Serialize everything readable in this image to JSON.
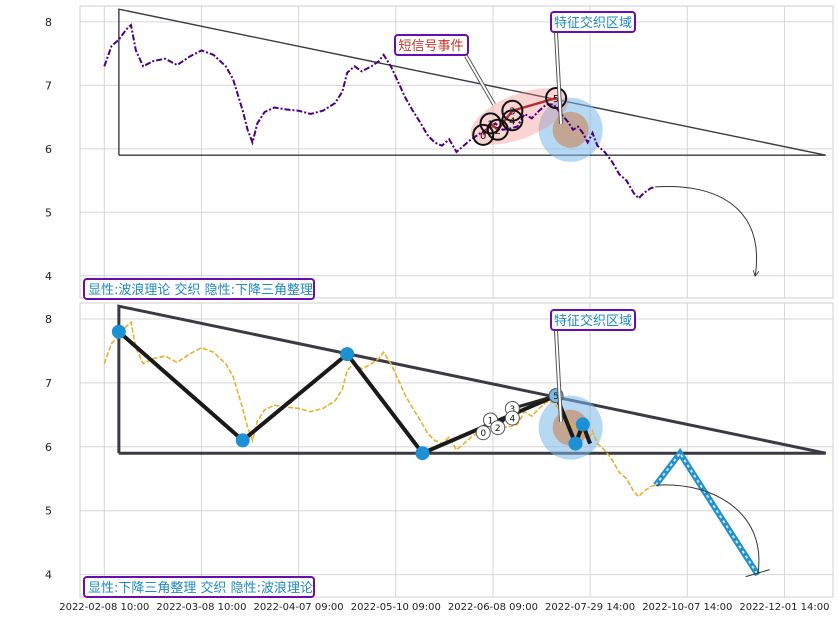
{
  "chart_data": [
    {
      "type": "line",
      "panel": "top",
      "ylim": [
        3.65,
        8.25
      ],
      "yticks": [
        4,
        5,
        6,
        7,
        8
      ],
      "grid": true,
      "colors": {
        "price": "#4b0082",
        "triangle": "#3a3a44",
        "event_fill": "#f08080",
        "zone_outer": "#7ab8e8",
        "zone_inner": "#d2691e",
        "label_border": "#6a0dad",
        "label_text_blue": "#1f8ac0",
        "label_text_red": "#c0392b"
      },
      "price_series": [
        [
          0,
          7.3
        ],
        [
          3,
          7.62
        ],
        [
          6,
          7.72
        ],
        [
          9,
          7.88
        ],
        [
          11,
          7.95
        ],
        [
          13,
          7.55
        ],
        [
          16,
          7.3
        ],
        [
          20,
          7.38
        ],
        [
          25,
          7.42
        ],
        [
          30,
          7.32
        ],
        [
          35,
          7.45
        ],
        [
          40,
          7.55
        ],
        [
          45,
          7.48
        ],
        [
          50,
          7.3
        ],
        [
          53,
          7.1
        ],
        [
          55,
          6.85
        ],
        [
          57,
          6.6
        ],
        [
          59,
          6.3
        ],
        [
          61,
          6.1
        ],
        [
          63,
          6.4
        ],
        [
          66,
          6.58
        ],
        [
          70,
          6.65
        ],
        [
          75,
          6.62
        ],
        [
          80,
          6.6
        ],
        [
          85,
          6.55
        ],
        [
          90,
          6.6
        ],
        [
          95,
          6.72
        ],
        [
          98,
          6.9
        ],
        [
          100,
          7.2
        ],
        [
          103,
          7.3
        ],
        [
          106,
          7.22
        ],
        [
          110,
          7.3
        ],
        [
          113,
          7.38
        ],
        [
          115,
          7.48
        ],
        [
          118,
          7.3
        ],
        [
          121,
          7.05
        ],
        [
          124,
          6.8
        ],
        [
          127,
          6.6
        ],
        [
          130,
          6.42
        ],
        [
          133,
          6.22
        ],
        [
          136,
          6.1
        ],
        [
          139,
          6.05
        ],
        [
          142,
          6.15
        ],
        [
          145,
          5.95
        ],
        [
          148,
          6.05
        ],
        [
          151,
          6.15
        ],
        [
          155,
          6.25
        ],
        [
          158,
          6.32
        ],
        [
          161,
          6.4
        ],
        [
          164,
          6.3
        ],
        [
          167,
          6.32
        ],
        [
          170,
          6.35
        ],
        [
          173,
          6.55
        ],
        [
          176,
          6.48
        ],
        [
          179,
          6.6
        ],
        [
          182,
          6.7
        ],
        [
          185,
          6.7
        ],
        [
          188,
          6.55
        ],
        [
          191,
          6.42
        ],
        [
          193,
          6.3
        ],
        [
          195,
          6.35
        ],
        [
          197,
          6.25
        ],
        [
          199,
          6.1
        ],
        [
          201,
          6.25
        ],
        [
          203,
          6.05
        ],
        [
          206,
          5.95
        ],
        [
          209,
          5.8
        ],
        [
          212,
          5.6
        ],
        [
          215,
          5.5
        ],
        [
          218,
          5.3
        ],
        [
          220,
          5.22
        ],
        [
          222,
          5.3
        ],
        [
          225,
          5.38
        ],
        [
          227,
          5.4
        ]
      ],
      "triangle": {
        "apex": [
          6,
          8.2
        ],
        "base_left": [
          6,
          5.9
        ],
        "base_right": [
          297,
          5.9
        ]
      },
      "triangle_break_x": 140,
      "wave_points": [
        {
          "label": "0",
          "x": 156,
          "y": 6.22
        },
        {
          "label": "1",
          "x": 159,
          "y": 6.4
        },
        {
          "label": "2",
          "x": 162,
          "y": 6.3
        },
        {
          "label": "3",
          "x": 168,
          "y": 6.6
        },
        {
          "label": "4",
          "x": 168,
          "y": 6.45
        },
        {
          "label": "5",
          "x": 186,
          "y": 6.8
        }
      ],
      "event_zone": {
        "x": 192,
        "y": 6.3
      },
      "projection": {
        "from": [
          227,
          5.4
        ],
        "to": [
          268,
          4.0
        ]
      },
      "label": "显性:波浪理论 交织 隐性:下降三角整理",
      "annotations": {
        "short_signal": "短信号事件",
        "zone": "特征交织区域"
      }
    },
    {
      "type": "line",
      "panel": "bottom",
      "ylim": [
        3.65,
        8.25
      ],
      "yticks": [
        4,
        5,
        6,
        7,
        8
      ],
      "grid": true,
      "colors": {
        "price": "#e8b030",
        "wave": "#1a1a1a",
        "wave_marker": "#1e90d4",
        "triangle": "#3a3a44",
        "projection_fill": "#a8c8e0",
        "projection_edge": "#1e90d4",
        "zone_outer": "#7ab8e8",
        "zone_inner": "#d2691e",
        "label_border": "#6a0dad",
        "label_text_blue": "#1f8ac0"
      },
      "price_series": [
        [
          0,
          7.3
        ],
        [
          3,
          7.62
        ],
        [
          6,
          7.72
        ],
        [
          9,
          7.88
        ],
        [
          11,
          7.95
        ],
        [
          13,
          7.55
        ],
        [
          16,
          7.3
        ],
        [
          20,
          7.38
        ],
        [
          25,
          7.42
        ],
        [
          30,
          7.32
        ],
        [
          35,
          7.45
        ],
        [
          40,
          7.55
        ],
        [
          45,
          7.48
        ],
        [
          50,
          7.3
        ],
        [
          53,
          7.1
        ],
        [
          55,
          6.85
        ],
        [
          57,
          6.6
        ],
        [
          59,
          6.3
        ],
        [
          61,
          6.1
        ],
        [
          63,
          6.4
        ],
        [
          66,
          6.58
        ],
        [
          70,
          6.65
        ],
        [
          75,
          6.62
        ],
        [
          80,
          6.6
        ],
        [
          85,
          6.55
        ],
        [
          90,
          6.6
        ],
        [
          95,
          6.72
        ],
        [
          98,
          6.9
        ],
        [
          100,
          7.2
        ],
        [
          103,
          7.3
        ],
        [
          106,
          7.22
        ],
        [
          110,
          7.3
        ],
        [
          113,
          7.38
        ],
        [
          115,
          7.48
        ],
        [
          118,
          7.3
        ],
        [
          121,
          7.05
        ],
        [
          124,
          6.8
        ],
        [
          127,
          6.6
        ],
        [
          130,
          6.42
        ],
        [
          133,
          6.22
        ],
        [
          136,
          6.1
        ],
        [
          139,
          6.05
        ],
        [
          142,
          6.15
        ],
        [
          145,
          5.95
        ],
        [
          148,
          6.05
        ],
        [
          151,
          6.15
        ],
        [
          155,
          6.25
        ],
        [
          158,
          6.32
        ],
        [
          161,
          6.4
        ],
        [
          164,
          6.3
        ],
        [
          167,
          6.32
        ],
        [
          170,
          6.35
        ],
        [
          173,
          6.55
        ],
        [
          176,
          6.48
        ],
        [
          179,
          6.6
        ],
        [
          182,
          6.7
        ],
        [
          185,
          6.7
        ],
        [
          188,
          6.55
        ],
        [
          191,
          6.42
        ],
        [
          193,
          6.3
        ],
        [
          195,
          6.35
        ],
        [
          197,
          6.25
        ],
        [
          199,
          6.1
        ],
        [
          201,
          6.25
        ],
        [
          203,
          6.05
        ],
        [
          206,
          5.95
        ],
        [
          209,
          5.8
        ],
        [
          212,
          5.6
        ],
        [
          215,
          5.5
        ],
        [
          218,
          5.3
        ],
        [
          220,
          5.22
        ],
        [
          222,
          5.3
        ],
        [
          225,
          5.38
        ],
        [
          227,
          5.4
        ]
      ],
      "triangle": {
        "apex": [
          6,
          8.2
        ],
        "base_left": [
          6,
          5.9
        ],
        "base_right": [
          297,
          5.9
        ]
      },
      "wave_main": [
        {
          "x": 6,
          "y": 7.8
        },
        {
          "x": 57,
          "y": 6.1
        },
        {
          "x": 100,
          "y": 7.45
        },
        {
          "x": 131,
          "y": 5.9
        },
        {
          "x": 186,
          "y": 6.8
        },
        {
          "x": 194,
          "y": 6.05
        },
        {
          "x": 197,
          "y": 6.35
        },
        {
          "x": 200,
          "y": 6.05
        }
      ],
      "wave_markers": [
        {
          "x": 6,
          "y": 7.8
        },
        {
          "x": 57,
          "y": 6.1
        },
        {
          "x": 100,
          "y": 7.45
        },
        {
          "x": 131,
          "y": 5.9
        },
        {
          "x": 194,
          "y": 6.05
        },
        {
          "x": 197,
          "y": 6.35
        }
      ],
      "wave_points": [
        {
          "label": "0",
          "x": 156,
          "y": 6.22
        },
        {
          "label": "1",
          "x": 159,
          "y": 6.42
        },
        {
          "label": "2",
          "x": 162,
          "y": 6.3
        },
        {
          "label": "3",
          "x": 168,
          "y": 6.6
        },
        {
          "label": "4",
          "x": 168,
          "y": 6.45
        },
        {
          "label": "5",
          "x": 186,
          "y": 6.8
        }
      ],
      "event_zone": {
        "x": 192,
        "y": 6.3
      },
      "projection_path": [
        {
          "x": 227,
          "y": 5.4
        },
        {
          "x": 237,
          "y": 5.9
        },
        {
          "x": 269,
          "y": 4.0
        }
      ],
      "projection_curve": {
        "from": [
          227,
          5.4
        ],
        "to": [
          269,
          4.0
        ]
      },
      "label": "显性:下降三角整理 交织 隐性:波浪理论",
      "annotations": {
        "zone": "特征交织区域"
      },
      "x_ticks": [
        {
          "x": 0,
          "label": "2022-02-08 10:00"
        },
        {
          "x": 40,
          "label": "2022-03-08 10:00"
        },
        {
          "x": 80,
          "label": "2022-04-07 09:00"
        },
        {
          "x": 120,
          "label": "2022-05-10 09:00"
        },
        {
          "x": 160,
          "label": "2022-06-08 09:00"
        },
        {
          "x": 200,
          "label": "2022-07-29 14:00"
        },
        {
          "x": 240,
          "label": "2022-10-07 14:00"
        },
        {
          "x": 280,
          "label": "2022-12-01 14:00"
        }
      ]
    }
  ]
}
